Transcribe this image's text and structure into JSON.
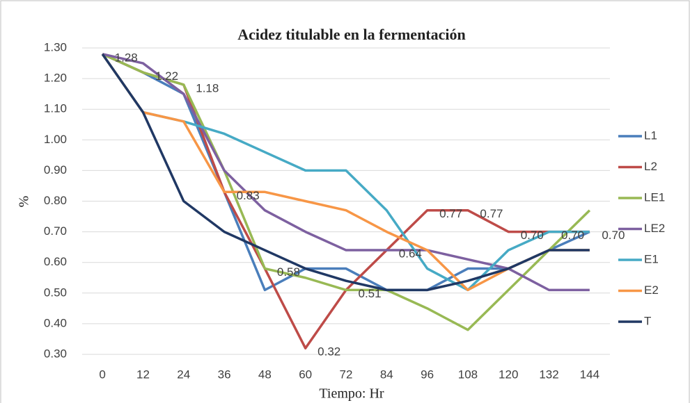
{
  "chart_data": {
    "type": "line",
    "title": "Acidez titulable en la fermentación",
    "xlabel": "Tiempo: Hr",
    "ylabel": "%",
    "categories": [
      0,
      12,
      24,
      36,
      48,
      60,
      72,
      84,
      96,
      108,
      120,
      132,
      144
    ],
    "series": [
      {
        "name": "L1",
        "color": "#4a7ebb",
        "values": [
          1.28,
          1.22,
          1.15,
          0.83,
          0.51,
          0.58,
          0.58,
          0.51,
          0.51,
          0.58,
          0.58,
          0.64,
          0.7
        ]
      },
      {
        "name": "L2",
        "color": "#be4b48",
        "values": [
          1.28,
          1.22,
          1.18,
          0.83,
          0.58,
          0.32,
          0.51,
          0.64,
          0.77,
          0.77,
          0.7,
          0.7,
          0.7
        ],
        "value_labels": [
          "1.28",
          "1.22",
          "1.18",
          "0.83",
          "0.58",
          "0.32",
          "0.51",
          "0.64",
          "0.77",
          "0.77",
          "0.70",
          "0.70",
          "0.70"
        ]
      },
      {
        "name": "LE1",
        "color": "#98b954",
        "values": [
          1.28,
          1.22,
          1.18,
          0.9,
          0.58,
          0.55,
          0.51,
          0.51,
          0.45,
          0.38,
          0.51,
          0.64,
          0.77
        ]
      },
      {
        "name": "LE2",
        "color": "#7d60a0",
        "values": [
          1.28,
          1.25,
          1.15,
          0.9,
          0.77,
          0.7,
          0.64,
          0.64,
          0.64,
          0.61,
          0.58,
          0.51,
          0.51
        ]
      },
      {
        "name": "E1",
        "color": "#46aac5",
        "values": [
          1.28,
          1.09,
          1.06,
          1.02,
          0.96,
          0.9,
          0.9,
          0.77,
          0.58,
          0.51,
          0.64,
          0.7,
          0.7
        ]
      },
      {
        "name": "E2",
        "color": "#f79646",
        "values": [
          1.28,
          1.09,
          1.06,
          0.83,
          0.83,
          0.8,
          0.77,
          0.7,
          0.64,
          0.51,
          0.58,
          0.64,
          0.64
        ]
      },
      {
        "name": "T",
        "color": "#203864",
        "values": [
          1.28,
          1.09,
          0.8,
          0.7,
          0.64,
          0.58,
          0.54,
          0.51,
          0.51,
          0.54,
          0.58,
          0.64,
          0.64
        ]
      }
    ],
    "ylim": [
      0.3,
      1.3
    ],
    "yticks": [
      {
        "value": 0.3,
        "label": "0.30"
      },
      {
        "value": 0.4,
        "label": "0.40"
      },
      {
        "value": 0.5,
        "label": "0.50"
      },
      {
        "value": 0.6,
        "label": "0.60"
      },
      {
        "value": 0.7,
        "label": "0.70"
      },
      {
        "value": 0.8,
        "label": "0.80"
      },
      {
        "value": 0.9,
        "label": "0.90"
      },
      {
        "value": 1.0,
        "label": "1.00"
      },
      {
        "value": 1.1,
        "label": "1.10"
      },
      {
        "value": 1.2,
        "label": "1.20"
      },
      {
        "value": 1.3,
        "label": "1.30"
      }
    ],
    "grid": true,
    "legend": "right"
  }
}
